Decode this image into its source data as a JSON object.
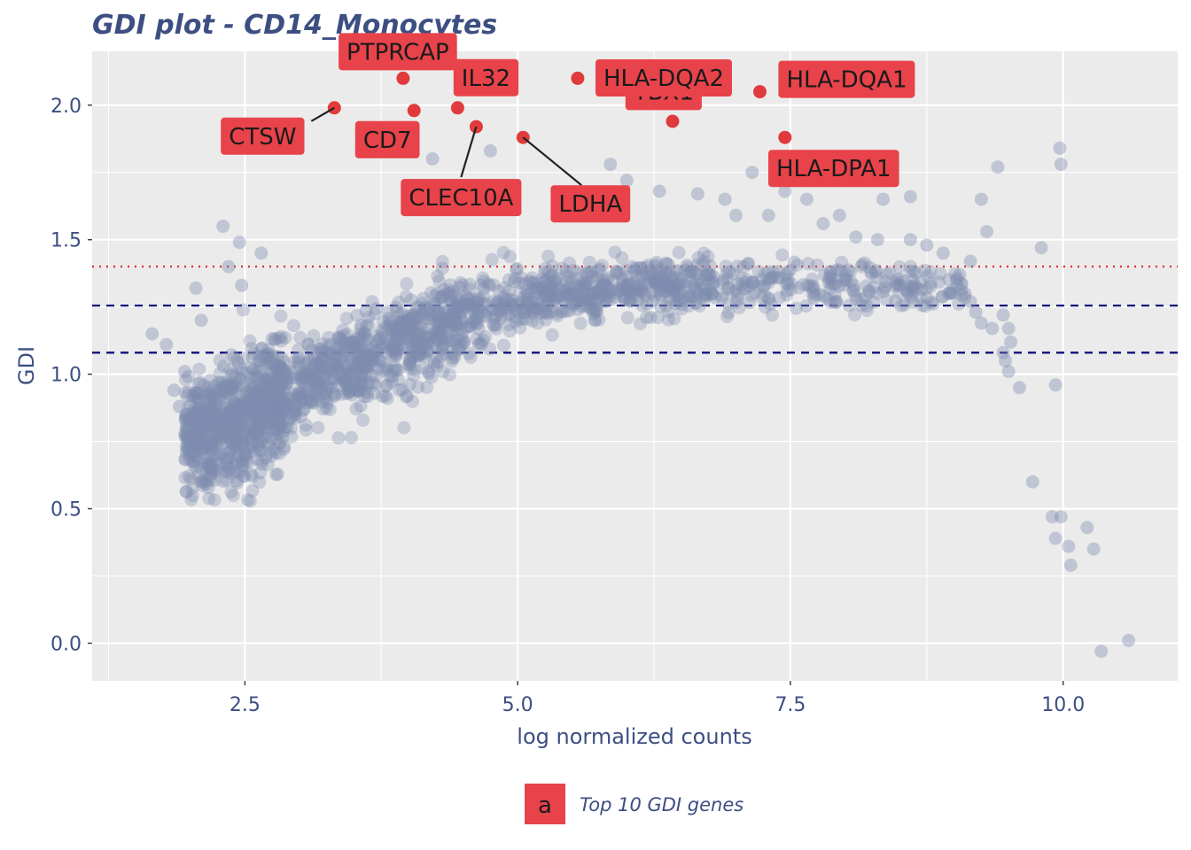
{
  "chart_data": {
    "type": "scatter",
    "title": "GDI plot - CD14_Monocytes",
    "xlabel": "log normalized counts",
    "ylabel": "GDI",
    "xlim": [
      1.1,
      11.05
    ],
    "ylim": [
      -0.14,
      2.2
    ],
    "x_ticks": [
      2.5,
      5.0,
      7.5,
      10.0
    ],
    "x_tick_labels": [
      "2.5",
      "5.0",
      "7.5",
      "10.0"
    ],
    "y_ticks": [
      0.0,
      0.5,
      1.0,
      1.5,
      2.0
    ],
    "y_tick_labels": [
      "0.0",
      "0.5",
      "1.0",
      "1.5",
      "2.0"
    ],
    "grid": true,
    "background_color": "#ebebeb",
    "point_color": "#7f8bb0",
    "highlight_color": "#e0272a",
    "label_box_color": "#e8434a",
    "reference_lines": [
      {
        "y": 1.4,
        "style": "dotted",
        "color": "#e03030"
      },
      {
        "y": 1.255,
        "style": "dashed",
        "color": "#10107a"
      },
      {
        "y": 1.08,
        "style": "dashed",
        "color": "#10107a"
      }
    ],
    "highlighted_genes": [
      {
        "gene": "PTPRCAP",
        "x": 3.95,
        "y": 2.1
      },
      {
        "gene": "CTSW",
        "x": 3.32,
        "y": 1.99
      },
      {
        "gene": "CD7",
        "x": 4.05,
        "y": 1.98
      },
      {
        "gene": "IL32",
        "x": 4.45,
        "y": 1.99
      },
      {
        "gene": "CLEC10A",
        "x": 4.62,
        "y": 1.92
      },
      {
        "gene": "LDHA",
        "x": 5.05,
        "y": 1.88
      },
      {
        "gene": "YBX1",
        "x": 5.55,
        "y": 2.1
      },
      {
        "gene": "HLA-DQA2",
        "x": 6.42,
        "y": 1.94
      },
      {
        "gene": "HLA-DQA1",
        "x": 7.22,
        "y": 2.05
      },
      {
        "gene": "HLA-DPA1",
        "x": 7.45,
        "y": 1.88
      }
    ],
    "outlier_points": [
      [
        1.65,
        1.15
      ],
      [
        1.78,
        1.11
      ],
      [
        1.85,
        0.94
      ],
      [
        1.9,
        0.88
      ],
      [
        1.95,
        1.01
      ],
      [
        2.3,
        1.55
      ],
      [
        2.35,
        1.4
      ],
      [
        2.45,
        1.49
      ],
      [
        2.47,
        1.33
      ],
      [
        2.65,
        1.45
      ],
      [
        2.05,
        1.32
      ],
      [
        2.1,
        1.2
      ],
      [
        4.22,
        1.8
      ],
      [
        4.75,
        1.83
      ],
      [
        5.85,
        1.78
      ],
      [
        6.0,
        1.72
      ],
      [
        6.3,
        1.68
      ],
      [
        6.65,
        1.67
      ],
      [
        6.9,
        1.65
      ],
      [
        7.15,
        1.75
      ],
      [
        7.45,
        1.68
      ],
      [
        7.65,
        1.65
      ],
      [
        8.35,
        1.65
      ],
      [
        8.6,
        1.66
      ],
      [
        7.0,
        1.59
      ],
      [
        7.3,
        1.59
      ],
      [
        7.95,
        1.59
      ],
      [
        7.8,
        1.56
      ],
      [
        8.1,
        1.51
      ],
      [
        8.3,
        1.5
      ],
      [
        8.6,
        1.5
      ],
      [
        8.75,
        1.48
      ],
      [
        8.9,
        1.45
      ],
      [
        9.15,
        1.42
      ],
      [
        9.25,
        1.65
      ],
      [
        9.3,
        1.53
      ],
      [
        9.4,
        1.77
      ],
      [
        9.8,
        1.47
      ],
      [
        9.97,
        1.84
      ],
      [
        9.98,
        1.78
      ],
      [
        9.05,
        1.37
      ],
      [
        9.1,
        1.3
      ],
      [
        9.15,
        1.27
      ],
      [
        9.2,
        1.23
      ],
      [
        9.25,
        1.19
      ],
      [
        9.35,
        1.17
      ],
      [
        9.45,
        1.22
      ],
      [
        9.5,
        1.17
      ],
      [
        9.52,
        1.12
      ],
      [
        9.45,
        1.08
      ],
      [
        9.47,
        1.05
      ],
      [
        9.5,
        1.01
      ],
      [
        9.6,
        0.95
      ],
      [
        9.93,
        0.96
      ],
      [
        9.72,
        0.6
      ],
      [
        9.9,
        0.47
      ],
      [
        9.98,
        0.47
      ],
      [
        9.93,
        0.39
      ],
      [
        10.05,
        0.36
      ],
      [
        10.07,
        0.29
      ],
      [
        10.22,
        0.43
      ],
      [
        10.28,
        0.35
      ],
      [
        10.35,
        -0.03
      ],
      [
        10.6,
        0.01
      ]
    ],
    "legend": {
      "key_text": "a",
      "label": "Top 10 GDI genes",
      "position": "bottom"
    }
  }
}
